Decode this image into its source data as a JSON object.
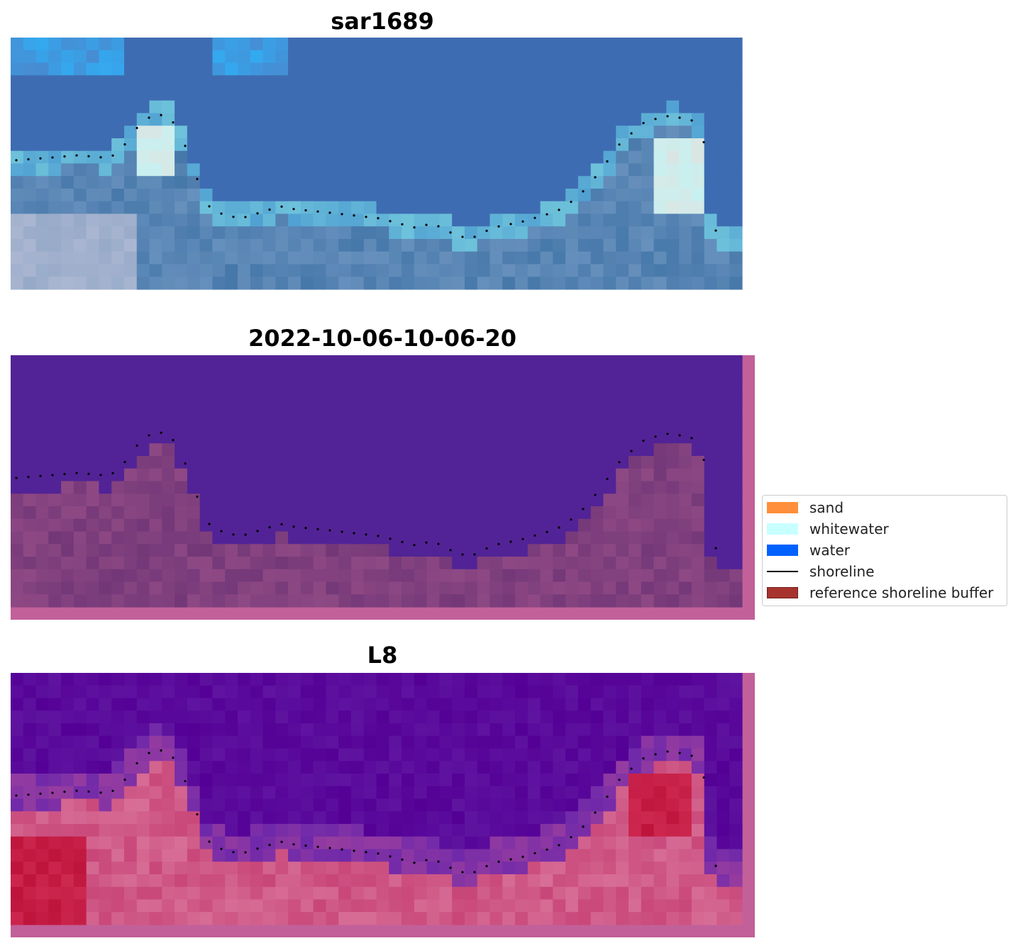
{
  "panels": [
    {
      "title": "sar1689",
      "mode": "rgb"
    },
    {
      "title": "2022-10-06-10-06-20",
      "mode": "classified"
    },
    {
      "title": "L8",
      "mode": "index"
    }
  ],
  "legend": {
    "items": [
      {
        "label": "sand",
        "color": "#ff8f3a",
        "kind": "patch"
      },
      {
        "label": "whitewater",
        "color": "#c8ffff",
        "kind": "patch"
      },
      {
        "label": "water",
        "color": "#0061ff",
        "kind": "patch"
      },
      {
        "label": "shoreline",
        "color": "#000000",
        "kind": "line"
      },
      {
        "label": "reference shoreline buffer",
        "color": "#a8332e",
        "kind": "patch"
      }
    ]
  }
}
